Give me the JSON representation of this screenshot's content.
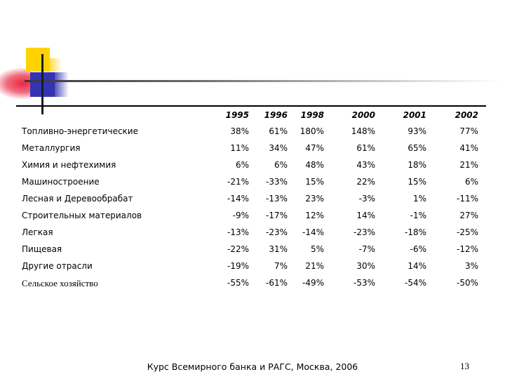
{
  "table": {
    "columns": [
      "1995",
      "1996",
      "1998",
      "2000",
      "2001",
      "2002"
    ],
    "rows": [
      {
        "label": "Топливно-энергетические",
        "values": [
          "38%",
          "61%",
          "180%",
          "148%",
          "93%",
          "77%"
        ]
      },
      {
        "label": "Металлургия",
        "values": [
          "11%",
          "34%",
          "47%",
          "61%",
          "65%",
          "41%"
        ]
      },
      {
        "label": "Химия и нефтехимия",
        "values": [
          "6%",
          "6%",
          "48%",
          "43%",
          "18%",
          "21%"
        ]
      },
      {
        "label": "Машиностроение",
        "values": [
          "-21%",
          "-33%",
          "15%",
          "22%",
          "15%",
          "6%"
        ]
      },
      {
        "label": "Лесная и Деревообрабат",
        "values": [
          "-14%",
          "-13%",
          "23%",
          "-3%",
          "1%",
          "-11%"
        ]
      },
      {
        "label": "Строительных материалов",
        "values": [
          "-9%",
          "-17%",
          "12%",
          "14%",
          "-1%",
          "27%"
        ]
      },
      {
        "label": "Легкая",
        "values": [
          "-13%",
          "-23%",
          "-14%",
          "-23%",
          "-18%",
          "-25%"
        ]
      },
      {
        "label": "Пищевая",
        "values": [
          "-22%",
          "31%",
          "5%",
          "-7%",
          "-6%",
          "-12%"
        ]
      },
      {
        "label": "Другие отрасли",
        "values": [
          "-19%",
          "7%",
          "21%",
          "30%",
          "14%",
          "3%"
        ]
      },
      {
        "label": "Сельское хозяйство",
        "values": [
          "-55%",
          "-61%",
          "-49%",
          "-53%",
          "-54%",
          "-50%"
        ]
      }
    ]
  },
  "footer": {
    "text": "Курс Всемирного банка и РАГС, Москва, 2006",
    "page_number": "13"
  },
  "decoration": {
    "colors": {
      "yellow": "#ffd301",
      "blue": "#3333b4",
      "red": "#e91c37",
      "line_dark": "#383838",
      "rule_black": "#000000"
    }
  }
}
